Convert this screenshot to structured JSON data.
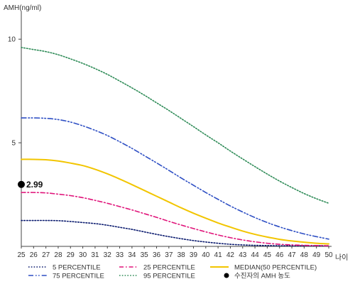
{
  "chart_data": {
    "type": "line",
    "ylabel": "AMH(ng/ml)",
    "xlabel": "나이",
    "xlim": [
      25,
      50
    ],
    "ylim": [
      0,
      11
    ],
    "x_ticks": [
      25,
      26,
      27,
      28,
      29,
      30,
      31,
      32,
      33,
      34,
      35,
      36,
      37,
      38,
      39,
      40,
      41,
      42,
      43,
      44,
      45,
      46,
      47,
      48,
      49,
      50
    ],
    "y_ticks": [
      5,
      10
    ],
    "grid": false,
    "legend_position": "bottom",
    "series": [
      {
        "name": "5 PERCENTILE",
        "color": "#0a1a6e",
        "dash": "dotted",
        "x": [
          25,
          26,
          27,
          28,
          29,
          30,
          31,
          32,
          33,
          34,
          35,
          36,
          37,
          38,
          39,
          40,
          41,
          42,
          43,
          44,
          45,
          46,
          47,
          48,
          49,
          50
        ],
        "y": [
          1.25,
          1.25,
          1.25,
          1.24,
          1.2,
          1.15,
          1.1,
          1.02,
          0.92,
          0.82,
          0.7,
          0.58,
          0.47,
          0.37,
          0.28,
          0.21,
          0.15,
          0.1,
          0.07,
          0.05,
          0.04,
          0.03,
          0.03,
          0.03,
          0.03,
          0.03
        ]
      },
      {
        "name": "25 PERCENTILE",
        "color": "#e0147a",
        "dash": "dashdot",
        "x": [
          25,
          26,
          27,
          28,
          29,
          30,
          31,
          32,
          33,
          34,
          35,
          36,
          37,
          38,
          39,
          40,
          41,
          42,
          43,
          44,
          45,
          46,
          47,
          48,
          49,
          50
        ],
        "y": [
          2.6,
          2.6,
          2.58,
          2.52,
          2.45,
          2.35,
          2.22,
          2.08,
          1.92,
          1.76,
          1.58,
          1.4,
          1.21,
          1.03,
          0.86,
          0.7,
          0.55,
          0.42,
          0.31,
          0.22,
          0.15,
          0.1,
          0.07,
          0.05,
          0.04,
          0.03
        ]
      },
      {
        "name": "MEDIAN(50 PERCENTILE)",
        "color": "#f2c500",
        "dash": "solid",
        "x": [
          25,
          26,
          27,
          28,
          29,
          30,
          31,
          32,
          33,
          34,
          35,
          36,
          37,
          38,
          39,
          40,
          41,
          42,
          43,
          44,
          45,
          46,
          47,
          48,
          49,
          50
        ],
        "y": [
          4.2,
          4.2,
          4.18,
          4.12,
          4.02,
          3.9,
          3.72,
          3.5,
          3.25,
          2.98,
          2.7,
          2.42,
          2.14,
          1.86,
          1.6,
          1.36,
          1.13,
          0.93,
          0.74,
          0.58,
          0.45,
          0.34,
          0.26,
          0.2,
          0.15,
          0.12
        ]
      },
      {
        "name": "75 PERCENTILE",
        "color": "#2e4fc4",
        "dash": "dashdotdot",
        "x": [
          25,
          26,
          27,
          28,
          29,
          30,
          31,
          32,
          33,
          34,
          35,
          36,
          37,
          38,
          39,
          40,
          41,
          42,
          43,
          44,
          45,
          46,
          47,
          48,
          49,
          50
        ],
        "y": [
          6.2,
          6.2,
          6.18,
          6.12,
          6.0,
          5.82,
          5.6,
          5.35,
          5.05,
          4.73,
          4.38,
          4.03,
          3.67,
          3.3,
          2.95,
          2.6,
          2.27,
          1.95,
          1.66,
          1.39,
          1.15,
          0.94,
          0.76,
          0.6,
          0.47,
          0.35
        ]
      },
      {
        "name": "95 PERCENTILE",
        "color": "#2e8b57",
        "dash": "dotted",
        "x": [
          25,
          26,
          27,
          28,
          29,
          30,
          31,
          32,
          33,
          34,
          35,
          36,
          37,
          38,
          39,
          40,
          41,
          42,
          43,
          44,
          45,
          46,
          47,
          48,
          49,
          50
        ],
        "y": [
          9.6,
          9.5,
          9.4,
          9.25,
          9.05,
          8.83,
          8.58,
          8.3,
          7.98,
          7.65,
          7.3,
          6.93,
          6.56,
          6.17,
          5.78,
          5.38,
          5.0,
          4.6,
          4.22,
          3.85,
          3.49,
          3.15,
          2.84,
          2.55,
          2.3,
          2.08
        ]
      }
    ],
    "points": [
      {
        "name": "수진자의 AMH 농도",
        "x": 25,
        "y": 2.99,
        "label": "2.99",
        "color": "#000000"
      }
    ],
    "legend": [
      {
        "label": "5 PERCENTILE",
        "color": "#0a1a6e",
        "dash": "dotted",
        "marker": "line"
      },
      {
        "label": "25 PERCENTILE",
        "color": "#e0147a",
        "dash": "dashdot",
        "marker": "line"
      },
      {
        "label": "MEDIAN(50 PERCENTILE)",
        "color": "#f2c500",
        "dash": "solid",
        "marker": "line"
      },
      {
        "label": "75 PERCENTILE",
        "color": "#2e4fc4",
        "dash": "dashdotdot",
        "marker": "line"
      },
      {
        "label": "95 PERCENTILE",
        "color": "#2e8b57",
        "dash": "dotted",
        "marker": "line"
      },
      {
        "label": "수진자의 AMH 농도",
        "color": "#000000",
        "dash": "none",
        "marker": "dot"
      }
    ]
  }
}
